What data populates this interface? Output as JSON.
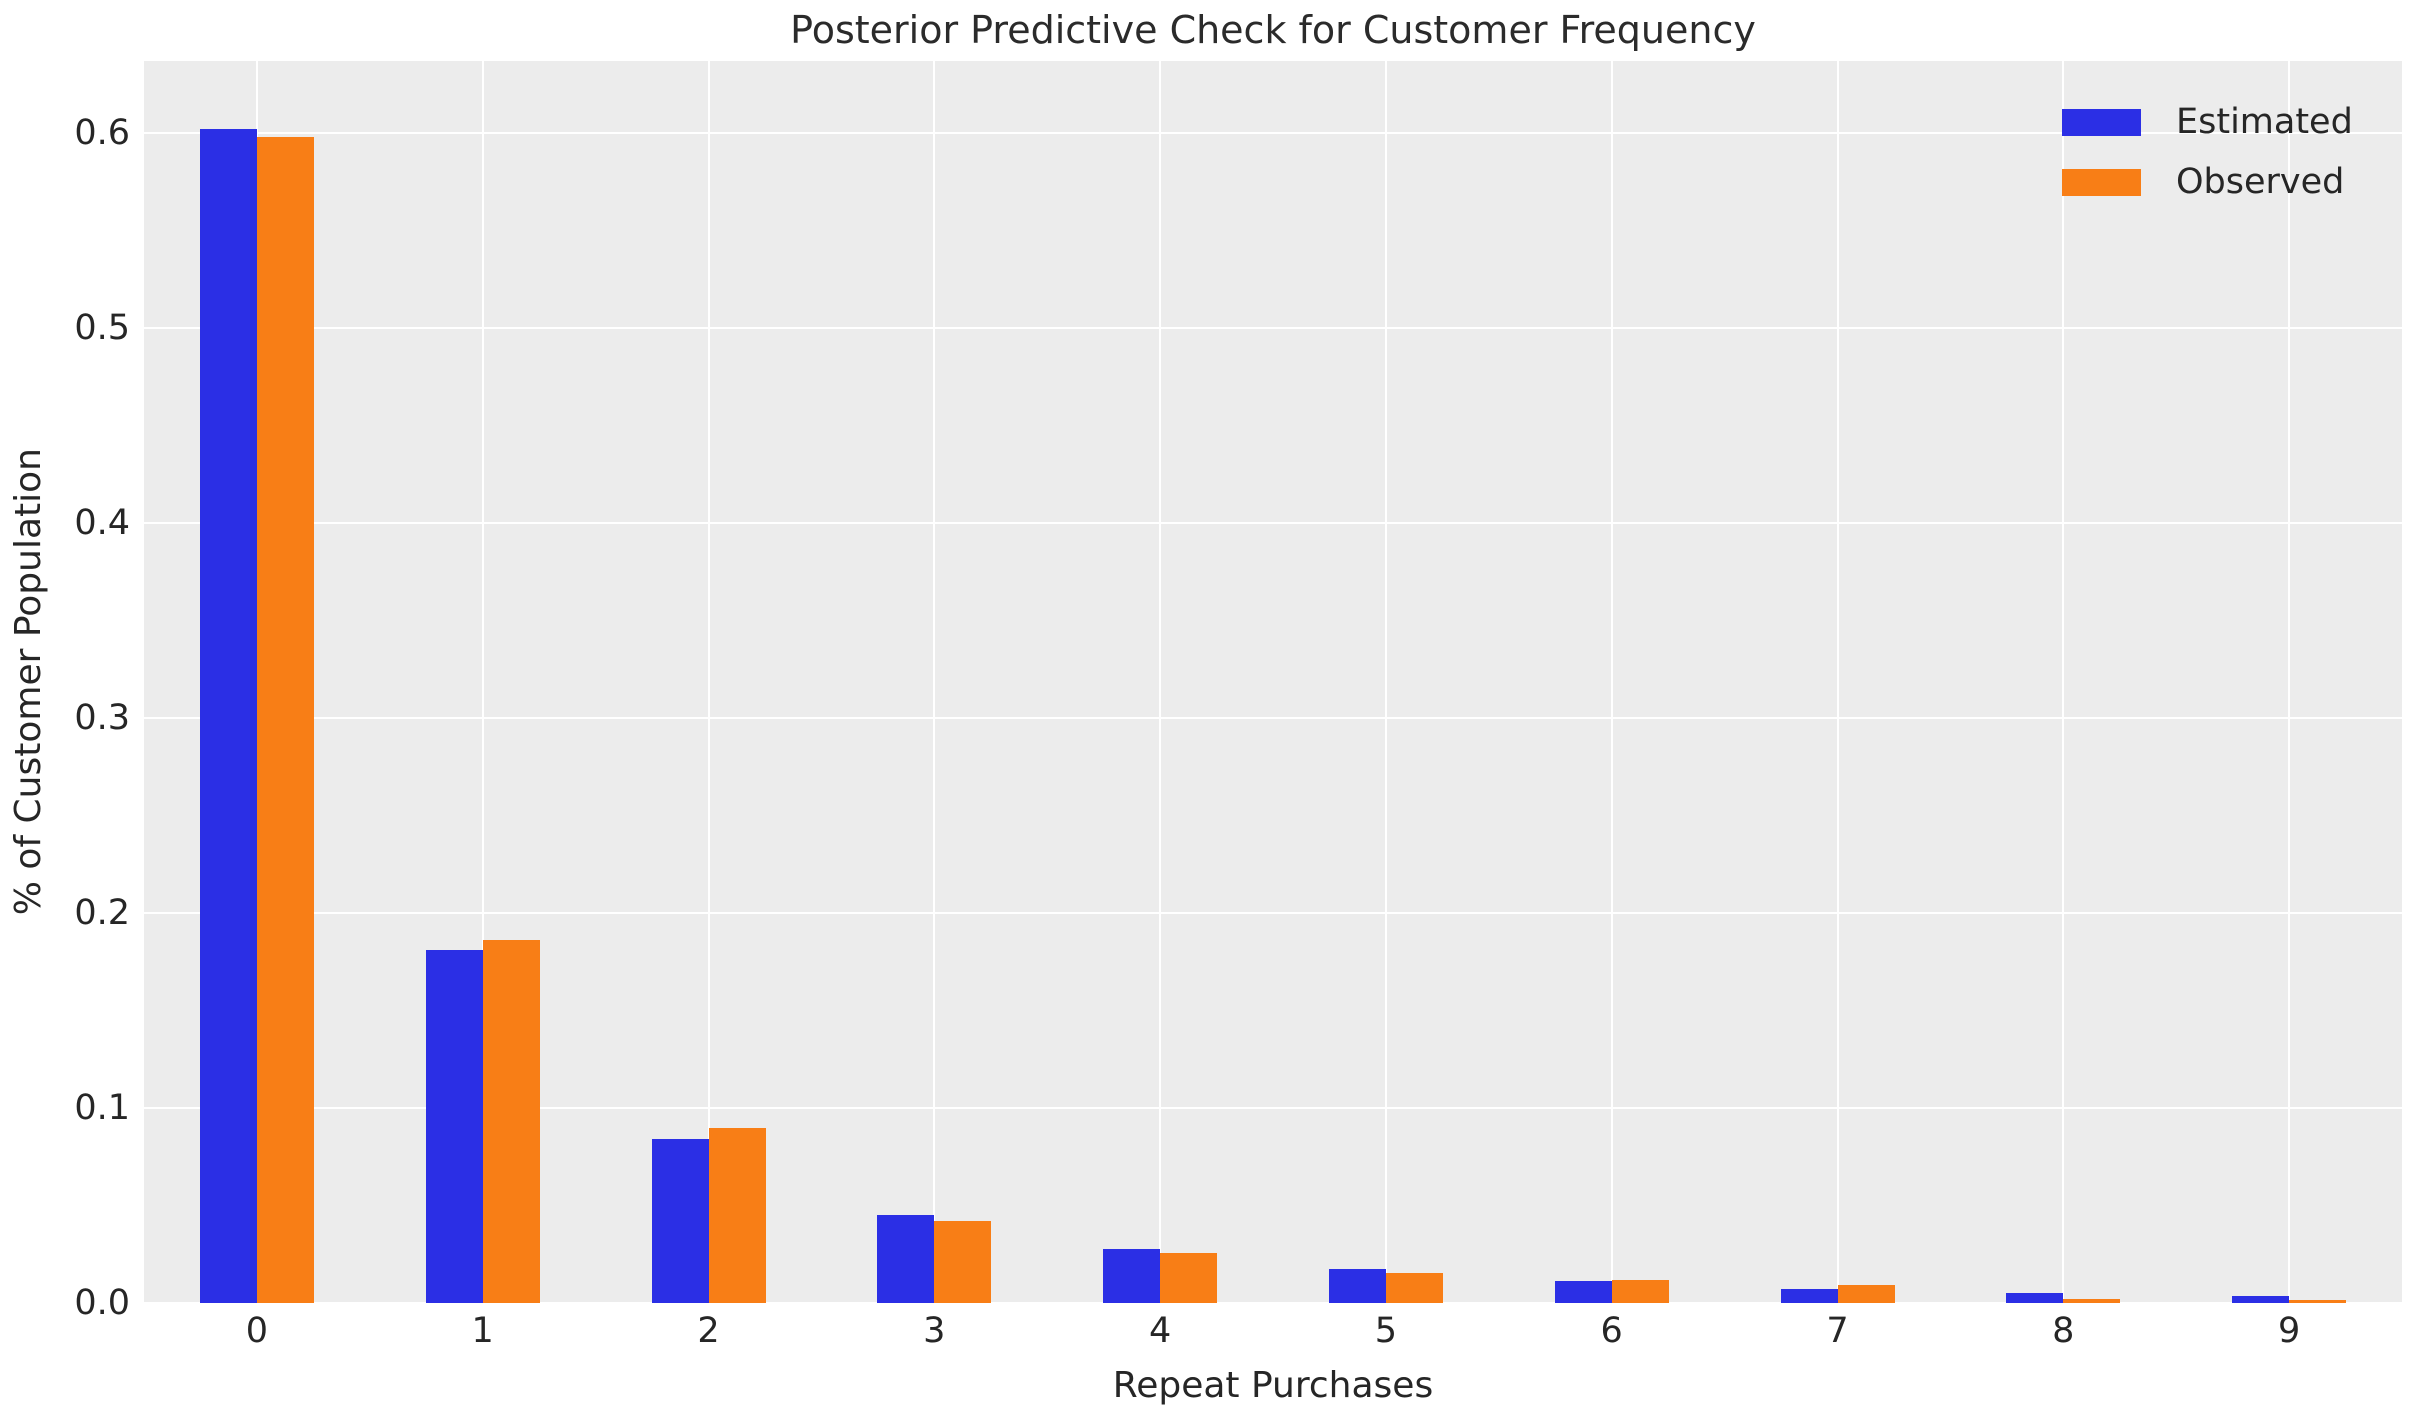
{
  "title": "Posterior Predictive Check for Customer Frequency",
  "colors": {
    "estimated": "#2b2fe5",
    "observed": "#f87e16",
    "plot_background": "#ececec",
    "gridline": "#ffffff",
    "text": "#262626"
  },
  "legend": {
    "entries": [
      {
        "label": "Estimated",
        "color": "#2b2fe5"
      },
      {
        "label": "Observed",
        "color": "#f87e16"
      }
    ]
  },
  "chart_data": {
    "type": "bar",
    "title": "Posterior Predictive Check for Customer Frequency",
    "xlabel": "Repeat Purchases",
    "ylabel": "% of Customer Population",
    "categories": [
      "0",
      "1",
      "2",
      "3",
      "4",
      "5",
      "6",
      "7",
      "8",
      "9"
    ],
    "series": [
      {
        "name": "Estimated",
        "color": "#2b2fe5",
        "values": [
          0.602,
          0.181,
          0.084,
          0.045,
          0.0275,
          0.0174,
          0.0114,
          0.0072,
          0.005,
          0.0036
        ]
      },
      {
        "name": "Observed",
        "color": "#f87e16",
        "values": [
          0.598,
          0.186,
          0.09,
          0.042,
          0.0256,
          0.0154,
          0.012,
          0.0092,
          0.0022,
          0.0015
        ]
      }
    ],
    "ylim": [
      0,
      0.637
    ],
    "yticks": [
      0.0,
      0.1,
      0.2,
      0.3,
      0.4,
      0.5,
      0.6
    ],
    "ytick_labels": [
      "0.0",
      "0.1",
      "0.2",
      "0.3",
      "0.4",
      "0.5",
      "0.6"
    ],
    "grid": true,
    "legend_position": "upper right"
  }
}
